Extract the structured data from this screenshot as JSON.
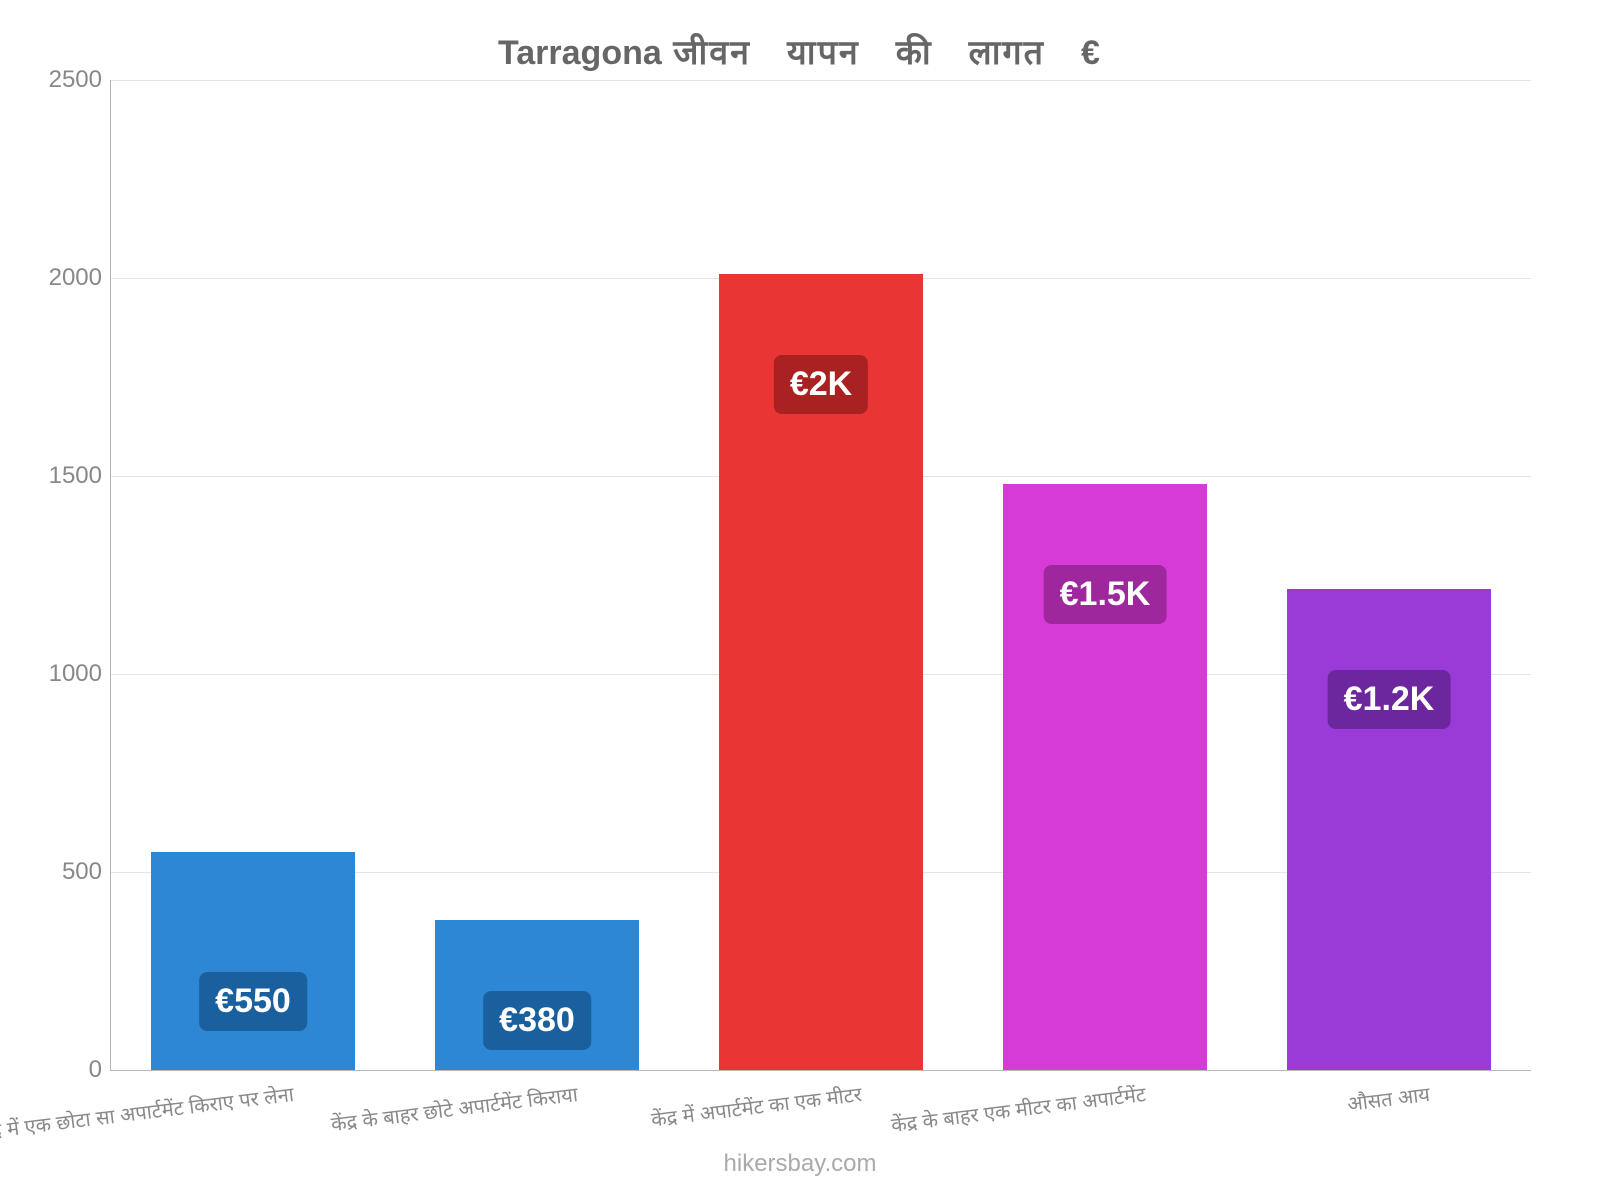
{
  "chart": {
    "type": "bar",
    "title_prefix": "Tarragona",
    "title_rest": "जीवन यापन की लागत €",
    "title_fontsize": 34,
    "title_color": "#666666",
    "background_color": "#ffffff",
    "grid_color": "#e5e5e5",
    "axis_color": "#b8b8b8",
    "tick_color": "#888888",
    "tick_fontsize": 24,
    "xlabel_fontsize": 20,
    "ylim_min": 0,
    "ylim_max": 2500,
    "ytick_step": 500,
    "yticks": [
      "0",
      "500",
      "1000",
      "1500",
      "2000",
      "2500"
    ],
    "bar_width_ratio": 0.72,
    "categories": [
      "केंद्र में एक छोटा सा अपार्टमेंट किराए पर लेना",
      "केंद्र के बाहर छोटे अपार्टमेंट किराया",
      "केंद्र में अपार्टमेंट का एक मीटर",
      "केंद्र के बाहर एक मीटर का अपार्टमेंट",
      "औसत आय"
    ],
    "values": [
      550,
      380,
      2010,
      1480,
      1215
    ],
    "value_labels": [
      "€550",
      "€380",
      "€2K",
      "€1.5K",
      "€1.2K"
    ],
    "bar_colors": [
      "#2d87d4",
      "#2d87d4",
      "#ea3535",
      "#d73bd7",
      "#9a3bd7"
    ],
    "label_bg_colors": [
      "#1a5f9e",
      "#1a5f9e",
      "#a92121",
      "#9e279e",
      "#6d279e"
    ],
    "label_color": "#ffffff",
    "label_fontsize": 34,
    "footer_text": "hikersbay.com",
    "footer_color": "#aaaaaa",
    "footer_fontsize": 24
  }
}
